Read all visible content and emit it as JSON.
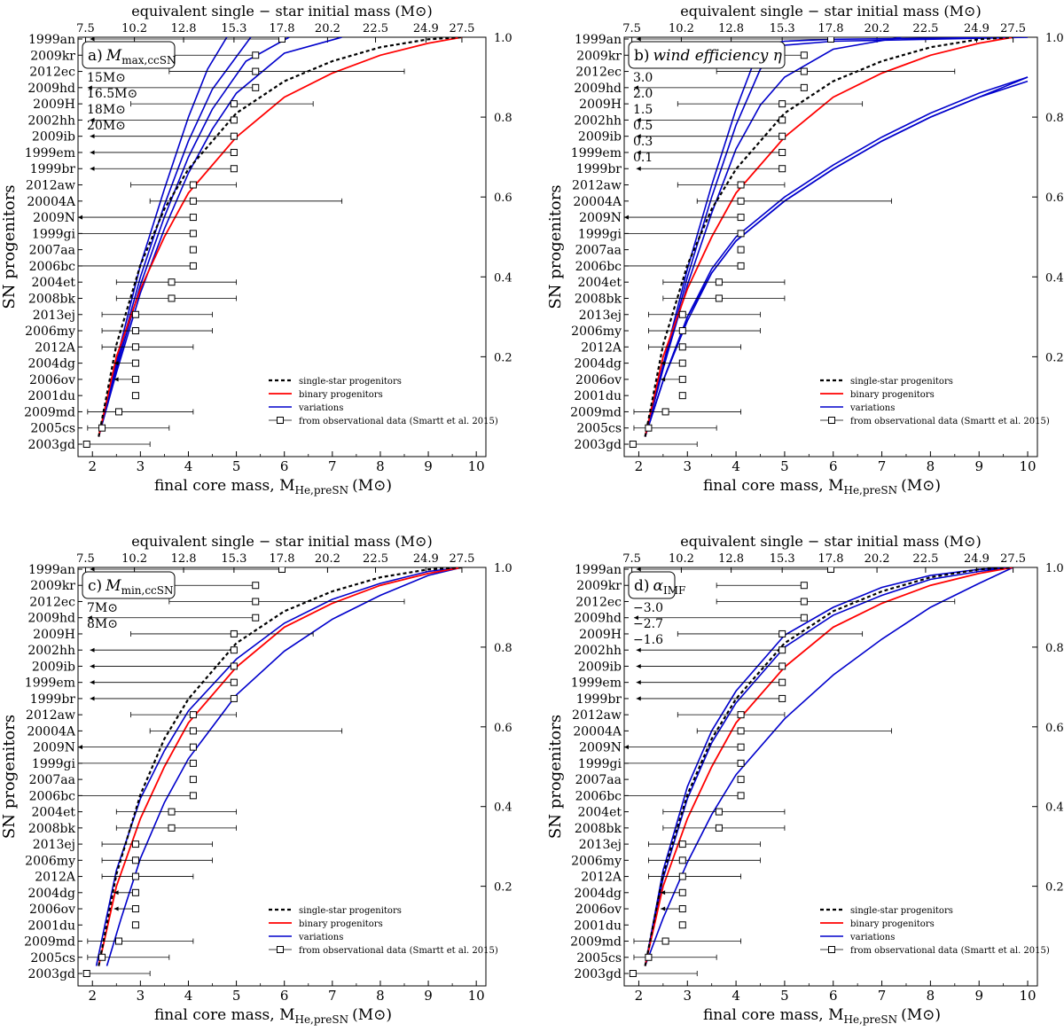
{
  "chart_data": [
    {
      "type": "line",
      "panel_label": "a)",
      "title_main": "M",
      "title_sub": "max,ccSN",
      "variation_labels": [
        "15M⊙",
        "16.5M⊙",
        "18M⊙",
        "20M⊙"
      ],
      "top_xlabel": "equivalent single − star initial mass (M⊙)",
      "bottom_xlabel": "final core mass, M",
      "bottom_xlabel_sub": "He,preSN",
      "bottom_xlabel_unit": "(M⊙)",
      "ylabel": "SN progenitors",
      "variation_curves": [
        {
          "name": "15M⊙",
          "x": [
            2.13,
            2.5,
            3,
            3.5,
            4,
            4.4,
            4.8
          ],
          "y": [
            0,
            0.19,
            0.43,
            0.62,
            0.8,
            0.92,
            1.0
          ]
        },
        {
          "name": "16.5M⊙",
          "x": [
            2.13,
            2.5,
            3,
            3.5,
            4,
            4.5,
            5.3
          ],
          "y": [
            0,
            0.18,
            0.4,
            0.58,
            0.74,
            0.87,
            1.0
          ]
        },
        {
          "name": "18M⊙",
          "x": [
            2.13,
            2.5,
            3,
            3.5,
            4,
            4.5,
            5.2,
            6.1
          ],
          "y": [
            0,
            0.17,
            0.38,
            0.55,
            0.7,
            0.82,
            0.94,
            1.0
          ]
        },
        {
          "name": "20M⊙",
          "x": [
            2.13,
            2.5,
            3,
            3.5,
            4,
            4.5,
            5,
            6,
            7.2
          ],
          "y": [
            0,
            0.16,
            0.36,
            0.52,
            0.66,
            0.77,
            0.86,
            0.96,
            1.0
          ]
        }
      ]
    },
    {
      "type": "line",
      "panel_label": "b)",
      "title_main": "wind efficiency η",
      "title_sub": "",
      "variation_labels": [
        "3.0",
        "2.0",
        "1.5",
        "0.5",
        "0.3",
        "0.1"
      ],
      "top_xlabel": "equivalent single − star initial mass (M⊙)",
      "bottom_xlabel": "final core mass, M",
      "bottom_xlabel_sub": "He,preSN",
      "bottom_xlabel_unit": "(M⊙)",
      "ylabel": "SN progenitors",
      "variation_curves": [
        {
          "name": "3.0",
          "x": [
            2.13,
            2.5,
            3,
            3.5,
            4,
            4.5,
            5,
            6,
            10
          ],
          "y": [
            0,
            0.18,
            0.42,
            0.63,
            0.82,
            0.98,
            0.99,
            0.995,
            1.0
          ]
        },
        {
          "name": "2.0",
          "x": [
            2.13,
            2.5,
            3,
            3.5,
            4,
            4.5,
            5,
            6,
            10
          ],
          "y": [
            0,
            0.17,
            0.4,
            0.6,
            0.78,
            0.92,
            0.98,
            0.99,
            1.0
          ]
        },
        {
          "name": "1.5",
          "x": [
            2.13,
            2.5,
            3,
            3.5,
            4,
            4.5,
            5,
            6,
            7.4
          ],
          "y": [
            0,
            0.17,
            0.38,
            0.56,
            0.72,
            0.83,
            0.9,
            0.97,
            1.0
          ]
        },
        {
          "name": "0.5",
          "x": [
            2.13,
            2.5,
            3,
            3.5,
            4,
            5,
            6,
            7,
            8,
            9,
            10
          ],
          "y": [
            0,
            0.14,
            0.3,
            0.42,
            0.5,
            0.6,
            0.68,
            0.75,
            0.81,
            0.86,
            0.9
          ]
        },
        {
          "name": "0.3",
          "x": [
            2.13,
            2.5,
            3,
            3.5,
            4,
            5,
            6,
            7,
            8,
            9,
            10
          ],
          "y": [
            0,
            0.14,
            0.29,
            0.41,
            0.49,
            0.59,
            0.67,
            0.74,
            0.8,
            0.85,
            0.89
          ]
        },
        {
          "name": "0.1",
          "x": [
            2.13,
            2.5,
            3,
            3.5,
            4,
            5,
            6,
            7,
            8,
            9,
            10
          ],
          "y": [
            0,
            0.14,
            0.3,
            0.41,
            0.49,
            0.59,
            0.67,
            0.74,
            0.8,
            0.85,
            0.9
          ]
        }
      ]
    },
    {
      "type": "line",
      "panel_label": "c)",
      "title_main": "M",
      "title_sub": "min,ccSN",
      "variation_labels": [
        "7M⊙",
        "8M⊙"
      ],
      "top_xlabel": "equivalent single − star initial mass (M⊙)",
      "bottom_xlabel": "final core mass, M",
      "bottom_xlabel_sub": "He,preSN",
      "bottom_xlabel_unit": "(M⊙)",
      "ylabel": "SN progenitors",
      "variation_curves": [
        {
          "name": "7M⊙",
          "x": [
            2.08,
            2.5,
            3,
            3.5,
            4,
            5,
            6,
            7,
            8,
            9,
            9.7
          ],
          "y": [
            0,
            0.24,
            0.42,
            0.54,
            0.64,
            0.77,
            0.86,
            0.92,
            0.96,
            0.99,
            1.0
          ]
        },
        {
          "name": "8M⊙",
          "x": [
            2.3,
            2.6,
            3,
            3.5,
            4,
            5,
            6,
            7,
            8,
            9,
            9.7
          ],
          "y": [
            0,
            0.12,
            0.27,
            0.41,
            0.52,
            0.68,
            0.79,
            0.87,
            0.93,
            0.98,
            1.0
          ]
        }
      ]
    },
    {
      "type": "line",
      "panel_label": "d)",
      "title_main": "α",
      "title_sub": "IMF",
      "variation_labels": [
        "−3.0",
        "−2.7",
        "−1.6"
      ],
      "top_xlabel": "equivalent single − star initial mass (M⊙)",
      "bottom_xlabel": "final core mass, M",
      "bottom_xlabel_sub": "He,preSN",
      "bottom_xlabel_unit": "(M⊙)",
      "ylabel": "SN progenitors",
      "variation_curves": [
        {
          "name": "−3.0",
          "x": [
            2.13,
            2.5,
            3,
            3.5,
            4,
            5,
            6,
            7,
            8,
            9,
            9.7
          ],
          "y": [
            0,
            0.24,
            0.45,
            0.59,
            0.69,
            0.83,
            0.9,
            0.95,
            0.98,
            0.995,
            1.0
          ]
        },
        {
          "name": "−2.7",
          "x": [
            2.13,
            2.5,
            3,
            3.5,
            4,
            5,
            6,
            7,
            8,
            9,
            9.7
          ],
          "y": [
            0,
            0.22,
            0.42,
            0.56,
            0.66,
            0.8,
            0.88,
            0.93,
            0.97,
            0.99,
            1.0
          ]
        },
        {
          "name": "−1.6",
          "x": [
            2.13,
            2.5,
            3,
            3.5,
            4,
            5,
            6,
            7,
            8,
            9,
            9.7
          ],
          "y": [
            0,
            0.12,
            0.26,
            0.38,
            0.48,
            0.62,
            0.73,
            0.82,
            0.9,
            0.96,
            1.0
          ]
        }
      ]
    }
  ],
  "shared": {
    "x_range": [
      1.7,
      10.2
    ],
    "y_range": [
      -0.05,
      1.0
    ],
    "bottom_ticks": [
      2,
      3,
      4,
      5,
      6,
      7,
      8,
      9,
      10
    ],
    "bottom_tick_labels": [
      "2",
      "3",
      "4",
      "5",
      "6",
      "7",
      "8",
      "9",
      "10"
    ],
    "top_ticks": [
      1.857,
      2.875,
      3.9,
      4.95,
      5.95,
      6.9,
      7.9,
      8.95,
      9.7
    ],
    "top_tick_labels": [
      "7.5",
      "10.2",
      "12.8",
      "15.3",
      "17.8",
      "20.2",
      "22.5",
      "24.9",
      "27.5"
    ],
    "right_ticks": [
      0.2,
      0.4,
      0.6,
      0.8,
      1.0
    ],
    "right_tick_labels": [
      "0.2",
      "0.4",
      "0.6",
      "0.8",
      "1.0"
    ],
    "single_star": {
      "x": [
        2.13,
        2.5,
        3,
        3.5,
        4,
        5,
        6,
        7,
        8,
        9,
        9.7
      ],
      "y": [
        0,
        0.23,
        0.43,
        0.57,
        0.67,
        0.81,
        0.89,
        0.94,
        0.975,
        0.995,
        1.0
      ]
    },
    "binary": {
      "x": [
        2.13,
        2.5,
        3,
        3.5,
        4,
        5,
        6,
        7,
        8,
        9,
        9.7
      ],
      "y": [
        0,
        0.2,
        0.37,
        0.5,
        0.61,
        0.75,
        0.85,
        0.91,
        0.955,
        0.985,
        1.0
      ]
    },
    "observations": {
      "names": [
        "1999an",
        "2009kr",
        "2012ec",
        "2009hd",
        "2009H",
        "2002hh",
        "2009ib",
        "1999em",
        "1999br",
        "2012aw",
        "20004A",
        "2009N",
        "1999gi",
        "2007aa",
        "2006bc",
        "2004et",
        "2008bk",
        "2013ej",
        "2006my",
        "2012A",
        "2004dg",
        "2006ov",
        "2001du",
        "2009md",
        "2005cs",
        "2003gd"
      ],
      "mass": [
        5.95,
        5.4,
        5.4,
        5.4,
        4.95,
        4.95,
        4.95,
        4.95,
        4.95,
        4.1,
        4.1,
        4.1,
        4.1,
        4.1,
        4.1,
        3.65,
        3.65,
        2.9,
        2.9,
        2.9,
        2.9,
        2.9,
        2.9,
        2.55,
        2.2,
        1.88
      ],
      "err_lo": [
        1.95,
        3.6,
        3.6,
        1.9,
        2.8,
        1.95,
        1.95,
        1.95,
        1.95,
        2.8,
        3.2,
        1.7,
        1.6,
        null,
        1.6,
        2.5,
        2.5,
        2.2,
        2.2,
        2.2,
        2.45,
        2.45,
        null,
        1.9,
        1.9,
        1.9
      ],
      "err_hi": [
        null,
        null,
        8.5,
        null,
        6.6,
        null,
        null,
        null,
        null,
        5.0,
        7.2,
        null,
        null,
        null,
        null,
        5.0,
        5.0,
        4.5,
        4.5,
        4.1,
        null,
        null,
        null,
        4.1,
        3.6,
        3.2
      ],
      "upper_limit": [
        true,
        false,
        false,
        true,
        false,
        true,
        true,
        true,
        true,
        false,
        false,
        true,
        true,
        false,
        true,
        false,
        false,
        false,
        false,
        false,
        true,
        true,
        false,
        false,
        false,
        false
      ]
    },
    "legend": {
      "single": "single-star progenitors",
      "binary": "binary progenitors",
      "variations": "variations",
      "observations": "from observational data (Smartt et al. 2015)"
    },
    "colors": {
      "single": "#000000",
      "binary": "#ff0000",
      "variations": "#0000cc",
      "obs": "#000000"
    }
  }
}
